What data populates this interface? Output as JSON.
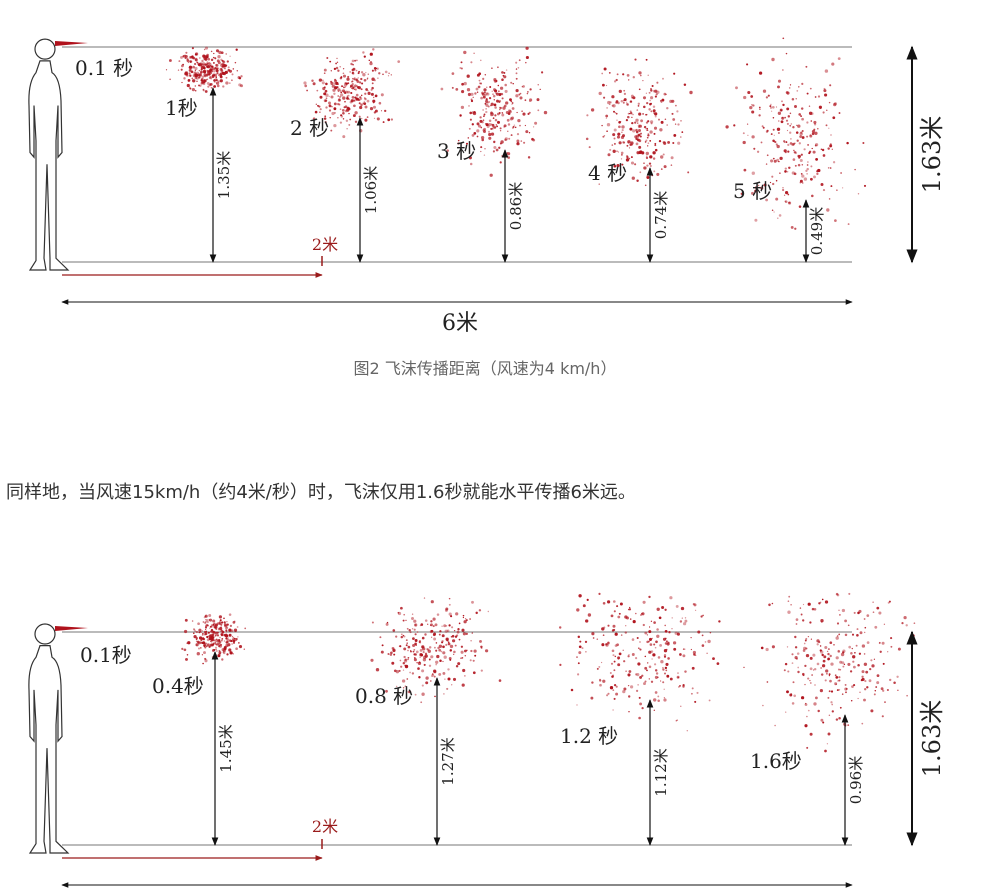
{
  "figures": [
    {
      "time_labels": [
        "0.1 秒",
        "1秒",
        "2 秒",
        "3 秒",
        "4 秒",
        "5 秒"
      ],
      "height_labels": [
        "1.35米",
        "1.06米",
        "0.86米",
        "0.74米",
        "0.49米"
      ],
      "marker_label": "2米",
      "width_label": "6米",
      "total_height_label": "1.63米"
    },
    {
      "time_labels": [
        "0.1秒",
        "0.4秒",
        "0.8 秒",
        "1.2 秒",
        "1.6秒"
      ],
      "height_labels": [
        "1.45米",
        "1.27米",
        "1.12米",
        "0.96米"
      ],
      "marker_label": "2米",
      "total_height_label": "1.63米"
    }
  ],
  "caption": "图2  飞沫传播距离（风速为4 km/h）",
  "paragraph": "同样地，当风速15km/h（约4米/秒）时，飞沫仅用1.6秒就能水平传播6米远。"
}
